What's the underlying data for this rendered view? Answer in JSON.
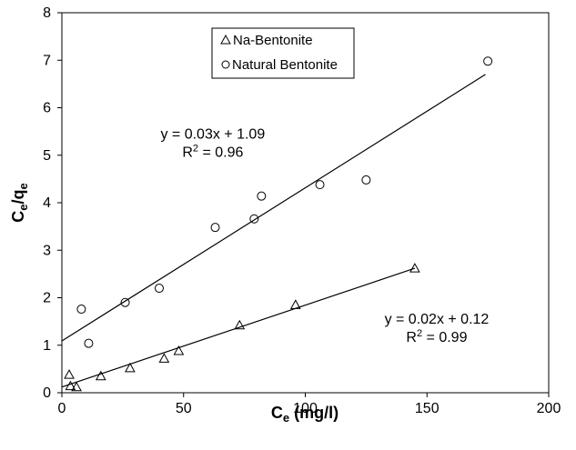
{
  "chart_data": {
    "type": "scatter",
    "title": "",
    "xlabel": {
      "main": "C",
      "sub": "e",
      "rest": " (mg/l)"
    },
    "ylabel": {
      "p1": "C",
      "s1": "e",
      "p2": "/q",
      "s2": "e"
    },
    "xlim": [
      0,
      200
    ],
    "ylim": [
      0,
      8
    ],
    "xticks": [
      "0",
      "50",
      "100",
      "150",
      "200"
    ],
    "yticks": [
      "0",
      "1",
      "2",
      "3",
      "4",
      "5",
      "6",
      "7",
      "8"
    ],
    "grid": false,
    "legend_placement": "top-center",
    "series": [
      {
        "name": "Na-Bentonite",
        "marker": "triangle",
        "x": [
          3,
          3.5,
          6,
          16,
          28,
          42,
          48,
          73,
          96,
          145
        ],
        "y": [
          0.38,
          0.14,
          0.12,
          0.35,
          0.52,
          0.72,
          0.88,
          1.42,
          1.85,
          2.62
        ],
        "trendline": {
          "x": [
            0,
            145
          ],
          "y": [
            0.12,
            2.62
          ]
        },
        "annotation": {
          "equation": "y = 0.02x + 0.12",
          "r2_prefix": "R",
          "r2_sup": "2",
          "r2_value": " = 0.99",
          "at": [
            154,
            1.45
          ]
        }
      },
      {
        "name": "Natural Bentonite",
        "marker": "circle",
        "x": [
          8,
          11,
          26,
          40,
          63,
          79,
          82,
          106,
          125,
          175
        ],
        "y": [
          1.76,
          1.04,
          1.9,
          2.2,
          3.48,
          3.66,
          4.14,
          4.38,
          4.48,
          6.98
        ],
        "trendline": {
          "x": [
            0,
            174
          ],
          "y": [
            1.09,
            6.7
          ]
        },
        "annotation": {
          "equation": "y = 0.03x + 1.09",
          "r2_prefix": "R",
          "r2_sup": "2",
          "r2_value": " = 0.96",
          "at": [
            62,
            5.35
          ]
        }
      }
    ]
  }
}
